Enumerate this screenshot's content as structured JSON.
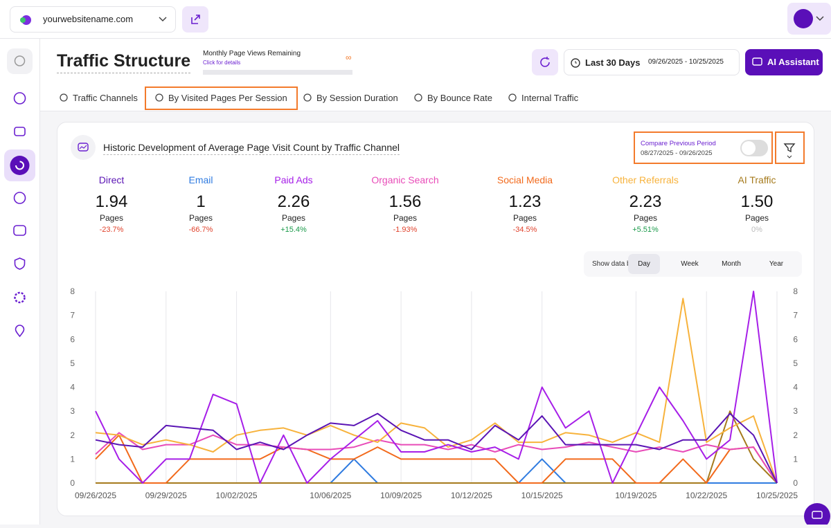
{
  "header": {
    "site": "yourwebsitename.com"
  },
  "page": {
    "title": "Traffic Structure",
    "quota_label": "Monthly Page Views Remaining",
    "quota_link": "Click for details",
    "quota_value": "∞",
    "range_label": "Last 30 Days",
    "range_dates": "09/26/2025 - 10/25/2025",
    "ai_button": "AI Assistant"
  },
  "tabs": [
    "Traffic Channels",
    "By Visited Pages Per Session",
    "By Session Duration",
    "By Bounce Rate",
    "Internal Traffic"
  ],
  "card": {
    "title": "Historic Development of Average Page Visit Count by Traffic Channel",
    "compare_label": "Compare Previous Period",
    "compare_dates": "08/27/2025 - 09/26/2025",
    "stats": [
      {
        "value": "1.94",
        "unit": "Pages",
        "change": "-23.7%"
      },
      {
        "value": "1",
        "unit": "Pages",
        "change": "-66.7%"
      },
      {
        "value": "2.26",
        "unit": "Pages",
        "change": "+15.4%"
      },
      {
        "value": "1.56",
        "unit": "Pages",
        "change": "-1.93%"
      },
      {
        "value": "1.23",
        "unit": "Pages",
        "change": "-34.5%"
      },
      {
        "value": "2.23",
        "unit": "Pages",
        "change": "+5.51%"
      },
      {
        "value": "1.50",
        "unit": "Pages",
        "change": "0%"
      }
    ],
    "show_by_label": "Show data by:",
    "periods": [
      "Day",
      "Week",
      "Month",
      "Year"
    ]
  },
  "chart_data": {
    "type": "line",
    "categories": [
      "09/26/2025",
      null,
      null,
      "09/29/2025",
      null,
      null,
      "10/02/2025",
      null,
      null,
      null,
      "10/06/2025",
      null,
      null,
      "10/09/2025",
      null,
      null,
      "10/12/2025",
      null,
      null,
      "10/15/2025",
      null,
      null,
      null,
      "10/19/2025",
      null,
      null,
      "10/22/2025",
      null,
      null,
      "10/25/2025"
    ],
    "series": [
      {
        "name": "Direct",
        "color": "#5a14b4",
        "values": [
          1.8,
          1.6,
          1.5,
          2.4,
          2.3,
          2.2,
          1.4,
          1.7,
          1.4,
          2.0,
          2.5,
          2.4,
          2.9,
          2.2,
          1.8,
          1.8,
          1.4,
          2.4,
          1.8,
          2.8,
          1.6,
          1.6,
          1.6,
          1.6,
          1.4,
          1.8,
          1.8,
          2.9,
          2.0,
          0
        ]
      },
      {
        "name": "Email",
        "color": "#2f7be0",
        "values": [
          0,
          0,
          0,
          0,
          0,
          0,
          0,
          0,
          0,
          0,
          0,
          1,
          0,
          0,
          0,
          0,
          0,
          0,
          0,
          1,
          0,
          0,
          0,
          0,
          0,
          0,
          0,
          0,
          0,
          0
        ]
      },
      {
        "name": "Paid Ads",
        "color": "#a61ee8",
        "values": [
          3.0,
          1.0,
          0,
          1.0,
          1.0,
          3.7,
          3.3,
          0,
          2.0,
          0,
          1.0,
          1.8,
          2.6,
          1.3,
          1.3,
          1.6,
          1.3,
          1.5,
          1.0,
          4.0,
          2.3,
          3.0,
          0,
          2.0,
          4.0,
          2.6,
          1.0,
          1.8,
          8.0,
          0
        ]
      },
      {
        "name": "Organic Search",
        "color": "#e84bb8",
        "values": [
          1.2,
          2.1,
          1.4,
          1.6,
          1.6,
          2.0,
          1.6,
          1.6,
          1.5,
          1.4,
          1.4,
          1.5,
          1.8,
          1.6,
          1.6,
          1.4,
          1.6,
          1.3,
          1.6,
          1.4,
          1.5,
          1.7,
          1.5,
          1.3,
          1.5,
          1.3,
          1.6,
          1.4,
          1.5,
          0
        ]
      },
      {
        "name": "Social Media",
        "color": "#f26a1c",
        "values": [
          1.0,
          2.0,
          0,
          0,
          1.0,
          1.0,
          1.0,
          1.0,
          1.5,
          1.4,
          1.0,
          1.0,
          1.5,
          1.0,
          1.0,
          1.0,
          1.0,
          1.0,
          0,
          0,
          1.0,
          1.0,
          1.0,
          0,
          0,
          1.0,
          0,
          1.4,
          1.5,
          0
        ]
      },
      {
        "name": "Other Referrals",
        "color": "#f7b23b",
        "values": [
          2.1,
          2.0,
          1.6,
          1.8,
          1.6,
          1.3,
          2.0,
          2.2,
          2.3,
          2.0,
          2.4,
          2.0,
          1.7,
          2.5,
          2.3,
          1.5,
          1.8,
          2.5,
          1.7,
          1.7,
          2.1,
          2.0,
          1.7,
          2.1,
          1.7,
          7.7,
          1.7,
          2.3,
          2.8,
          0
        ]
      },
      {
        "name": "AI Traffic",
        "color": "#a57a1c",
        "values": [
          0,
          0,
          0,
          0,
          0,
          0,
          0,
          0,
          0,
          0,
          0,
          0,
          0,
          0,
          0,
          0,
          0,
          0,
          0,
          0,
          0,
          0,
          0,
          0,
          0,
          0,
          0,
          3.0,
          1.0,
          0
        ]
      }
    ],
    "ylim": [
      0,
      8
    ],
    "yticks": [
      0,
      1,
      2,
      3,
      4,
      5,
      6,
      7,
      8
    ],
    "y2lim": [
      0,
      8
    ],
    "y2ticks": [
      0,
      1,
      2,
      3,
      4,
      5,
      6,
      7,
      8
    ],
    "grid": true
  }
}
